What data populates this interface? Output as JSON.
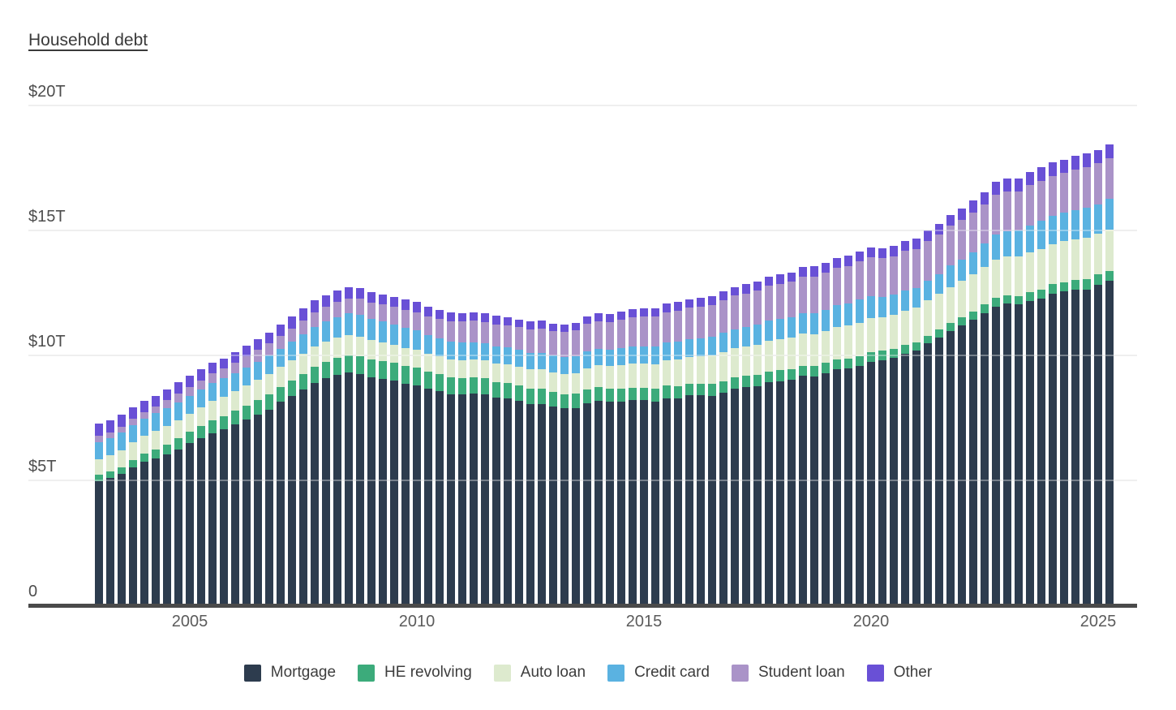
{
  "title": "Household debt",
  "chart_data": {
    "type": "bar",
    "stacked": true,
    "unit": "trillions of US dollars",
    "grid": "horizontal",
    "legend_position": "bottom",
    "ylim": [
      0,
      20
    ],
    "y_ticks": [
      {
        "label": "0",
        "value": 0
      },
      {
        "label": "$5T",
        "value": 5
      },
      {
        "label": "$10T",
        "value": 10
      },
      {
        "label": "$15T",
        "value": 15
      },
      {
        "label": "$20T",
        "value": 20
      }
    ],
    "x_ticks": [
      {
        "label": "2005",
        "index": 8
      },
      {
        "label": "2010",
        "index": 28
      },
      {
        "label": "2015",
        "index": 48
      },
      {
        "label": "2020",
        "index": 68
      },
      {
        "label": "2025",
        "index": 88
      }
    ],
    "axis_color": "#4a4a4a",
    "grid_color": "#e7e7e7",
    "quarters": [
      "2003 Q1",
      "2003 Q2",
      "2003 Q3",
      "2003 Q4",
      "2004 Q1",
      "2004 Q2",
      "2004 Q3",
      "2004 Q4",
      "2005 Q1",
      "2005 Q2",
      "2005 Q3",
      "2005 Q4",
      "2006 Q1",
      "2006 Q2",
      "2006 Q3",
      "2006 Q4",
      "2007 Q1",
      "2007 Q2",
      "2007 Q3",
      "2007 Q4",
      "2008 Q1",
      "2008 Q2",
      "2008 Q3",
      "2008 Q4",
      "2009 Q1",
      "2009 Q2",
      "2009 Q3",
      "2009 Q4",
      "2010 Q1",
      "2010 Q2",
      "2010 Q3",
      "2010 Q4",
      "2011 Q1",
      "2011 Q2",
      "2011 Q3",
      "2011 Q4",
      "2012 Q1",
      "2012 Q2",
      "2012 Q3",
      "2012 Q4",
      "2013 Q1",
      "2013 Q2",
      "2013 Q3",
      "2013 Q4",
      "2014 Q1",
      "2014 Q2",
      "2014 Q3",
      "2014 Q4",
      "2015 Q1",
      "2015 Q2",
      "2015 Q3",
      "2015 Q4",
      "2016 Q1",
      "2016 Q2",
      "2016 Q3",
      "2016 Q4",
      "2017 Q1",
      "2017 Q2",
      "2017 Q3",
      "2017 Q4",
      "2018 Q1",
      "2018 Q2",
      "2018 Q3",
      "2018 Q4",
      "2019 Q1",
      "2019 Q2",
      "2019 Q3",
      "2019 Q4",
      "2020 Q1",
      "2020 Q2",
      "2020 Q3",
      "2020 Q4",
      "2021 Q1",
      "2021 Q2",
      "2021 Q3",
      "2021 Q4",
      "2022 Q1",
      "2022 Q2",
      "2022 Q3",
      "2022 Q4",
      "2023 Q1",
      "2023 Q2",
      "2023 Q3",
      "2023 Q4",
      "2024 Q1",
      "2024 Q2",
      "2024 Q3",
      "2024 Q4",
      "2025 Q1",
      "2025 Q2"
    ],
    "series": [
      {
        "key": "mortgage",
        "name": "Mortgage",
        "color": "#2d3c4e",
        "values": [
          4.94,
          5.08,
          5.22,
          5.48,
          5.7,
          5.85,
          6.0,
          6.2,
          6.45,
          6.65,
          6.85,
          7.0,
          7.2,
          7.4,
          7.6,
          7.8,
          8.1,
          8.35,
          8.6,
          8.85,
          9.05,
          9.2,
          9.29,
          9.22,
          9.1,
          9.04,
          8.95,
          8.83,
          8.78,
          8.62,
          8.53,
          8.41,
          8.4,
          8.43,
          8.4,
          8.27,
          8.23,
          8.15,
          8.03,
          8.03,
          7.93,
          7.84,
          7.87,
          8.05,
          8.16,
          8.1,
          8.13,
          8.17,
          8.17,
          8.12,
          8.26,
          8.25,
          8.37,
          8.36,
          8.35,
          8.48,
          8.63,
          8.69,
          8.74,
          8.88,
          8.94,
          9.0,
          9.14,
          9.12,
          9.25,
          9.41,
          9.44,
          9.56,
          9.71,
          9.78,
          9.86,
          10.04,
          10.16,
          10.44,
          10.67,
          10.93,
          11.18,
          11.39,
          11.67,
          11.92,
          12.04,
          12.01,
          12.14,
          12.25,
          12.44,
          12.52,
          12.59,
          12.61,
          12.8,
          12.94
        ]
      },
      {
        "key": "he-revolving",
        "name": "HE revolving",
        "color": "#3cab7b",
        "values": [
          0.24,
          0.26,
          0.28,
          0.3,
          0.33,
          0.36,
          0.4,
          0.44,
          0.47,
          0.5,
          0.52,
          0.54,
          0.56,
          0.57,
          0.58,
          0.6,
          0.61,
          0.62,
          0.63,
          0.65,
          0.67,
          0.68,
          0.69,
          0.71,
          0.71,
          0.71,
          0.71,
          0.71,
          0.71,
          0.7,
          0.69,
          0.68,
          0.67,
          0.66,
          0.65,
          0.64,
          0.63,
          0.61,
          0.6,
          0.59,
          0.58,
          0.57,
          0.56,
          0.55,
          0.54,
          0.53,
          0.52,
          0.51,
          0.51,
          0.5,
          0.49,
          0.49,
          0.47,
          0.47,
          0.47,
          0.46,
          0.46,
          0.45,
          0.45,
          0.44,
          0.44,
          0.43,
          0.42,
          0.41,
          0.41,
          0.4,
          0.4,
          0.39,
          0.39,
          0.38,
          0.36,
          0.35,
          0.34,
          0.32,
          0.32,
          0.32,
          0.32,
          0.32,
          0.33,
          0.34,
          0.34,
          0.34,
          0.35,
          0.36,
          0.37,
          0.38,
          0.39,
          0.4,
          0.4,
          0.41
        ]
      },
      {
        "key": "auto-loan",
        "name": "Auto loan",
        "color": "#ddeace",
        "values": [
          0.64,
          0.62,
          0.68,
          0.7,
          0.72,
          0.74,
          0.75,
          0.73,
          0.72,
          0.74,
          0.77,
          0.78,
          0.78,
          0.79,
          0.8,
          0.81,
          0.79,
          0.8,
          0.81,
          0.82,
          0.81,
          0.81,
          0.81,
          0.79,
          0.76,
          0.74,
          0.73,
          0.72,
          0.7,
          0.7,
          0.7,
          0.71,
          0.71,
          0.71,
          0.72,
          0.73,
          0.74,
          0.75,
          0.77,
          0.78,
          0.79,
          0.81,
          0.83,
          0.86,
          0.88,
          0.9,
          0.93,
          0.95,
          0.97,
          1.0,
          1.03,
          1.06,
          1.07,
          1.1,
          1.14,
          1.16,
          1.17,
          1.19,
          1.21,
          1.22,
          1.23,
          1.24,
          1.27,
          1.27,
          1.28,
          1.3,
          1.32,
          1.33,
          1.35,
          1.34,
          1.36,
          1.37,
          1.38,
          1.42,
          1.44,
          1.46,
          1.47,
          1.5,
          1.52,
          1.55,
          1.56,
          1.58,
          1.6,
          1.61,
          1.62,
          1.63,
          1.64,
          1.66,
          1.64,
          1.66
        ]
      },
      {
        "key": "credit-card",
        "name": "Credit card",
        "color": "#5ab2e1",
        "values": [
          0.69,
          0.69,
          0.69,
          0.7,
          0.7,
          0.7,
          0.71,
          0.72,
          0.71,
          0.71,
          0.72,
          0.73,
          0.72,
          0.73,
          0.74,
          0.75,
          0.74,
          0.75,
          0.77,
          0.8,
          0.8,
          0.81,
          0.85,
          0.87,
          0.85,
          0.83,
          0.82,
          0.81,
          0.77,
          0.75,
          0.74,
          0.73,
          0.71,
          0.7,
          0.69,
          0.7,
          0.68,
          0.67,
          0.67,
          0.68,
          0.66,
          0.67,
          0.67,
          0.68,
          0.66,
          0.67,
          0.68,
          0.7,
          0.68,
          0.7,
          0.71,
          0.73,
          0.71,
          0.73,
          0.75,
          0.78,
          0.76,
          0.78,
          0.81,
          0.83,
          0.82,
          0.83,
          0.84,
          0.87,
          0.85,
          0.87,
          0.88,
          0.93,
          0.89,
          0.82,
          0.81,
          0.82,
          0.77,
          0.79,
          0.8,
          0.86,
          0.84,
          0.89,
          0.93,
          0.99,
          0.99,
          1.03,
          1.08,
          1.13,
          1.12,
          1.14,
          1.17,
          1.21,
          1.18,
          1.21
        ]
      },
      {
        "key": "student-loan",
        "name": "Student loan",
        "color": "#aa93c8",
        "values": [
          0.24,
          0.24,
          0.25,
          0.25,
          0.26,
          0.26,
          0.33,
          0.35,
          0.36,
          0.37,
          0.38,
          0.39,
          0.4,
          0.43,
          0.46,
          0.48,
          0.51,
          0.53,
          0.55,
          0.57,
          0.59,
          0.61,
          0.61,
          0.64,
          0.66,
          0.68,
          0.69,
          0.72,
          0.74,
          0.76,
          0.78,
          0.81,
          0.83,
          0.85,
          0.85,
          0.87,
          0.9,
          0.91,
          0.94,
          0.97,
          0.99,
          1.01,
          1.03,
          1.08,
          1.1,
          1.11,
          1.13,
          1.16,
          1.19,
          1.19,
          1.2,
          1.23,
          1.26,
          1.26,
          1.28,
          1.31,
          1.34,
          1.34,
          1.36,
          1.38,
          1.41,
          1.41,
          1.44,
          1.46,
          1.49,
          1.48,
          1.5,
          1.51,
          1.54,
          1.54,
          1.55,
          1.56,
          1.58,
          1.57,
          1.58,
          1.58,
          1.59,
          1.59,
          1.57,
          1.6,
          1.6,
          1.57,
          1.6,
          1.6,
          1.6,
          1.59,
          1.61,
          1.62,
          1.63,
          1.64
        ]
      },
      {
        "key": "other",
        "name": "Other",
        "color": "#6950d6",
        "values": [
          0.48,
          0.49,
          0.48,
          0.45,
          0.45,
          0.45,
          0.42,
          0.45,
          0.45,
          0.44,
          0.43,
          0.4,
          0.44,
          0.43,
          0.44,
          0.45,
          0.46,
          0.47,
          0.48,
          0.47,
          0.44,
          0.44,
          0.43,
          0.43,
          0.42,
          0.4,
          0.4,
          0.41,
          0.4,
          0.37,
          0.36,
          0.36,
          0.35,
          0.34,
          0.34,
          0.34,
          0.33,
          0.32,
          0.31,
          0.32,
          0.3,
          0.31,
          0.31,
          0.32,
          0.31,
          0.32,
          0.32,
          0.33,
          0.33,
          0.33,
          0.34,
          0.34,
          0.34,
          0.35,
          0.35,
          0.35,
          0.35,
          0.36,
          0.36,
          0.37,
          0.37,
          0.38,
          0.39,
          0.4,
          0.4,
          0.41,
          0.41,
          0.42,
          0.42,
          0.4,
          0.41,
          0.42,
          0.41,
          0.42,
          0.43,
          0.44,
          0.45,
          0.47,
          0.49,
          0.51,
          0.51,
          0.53,
          0.53,
          0.55,
          0.54,
          0.54,
          0.54,
          0.55,
          0.54,
          0.54
        ]
      }
    ]
  }
}
